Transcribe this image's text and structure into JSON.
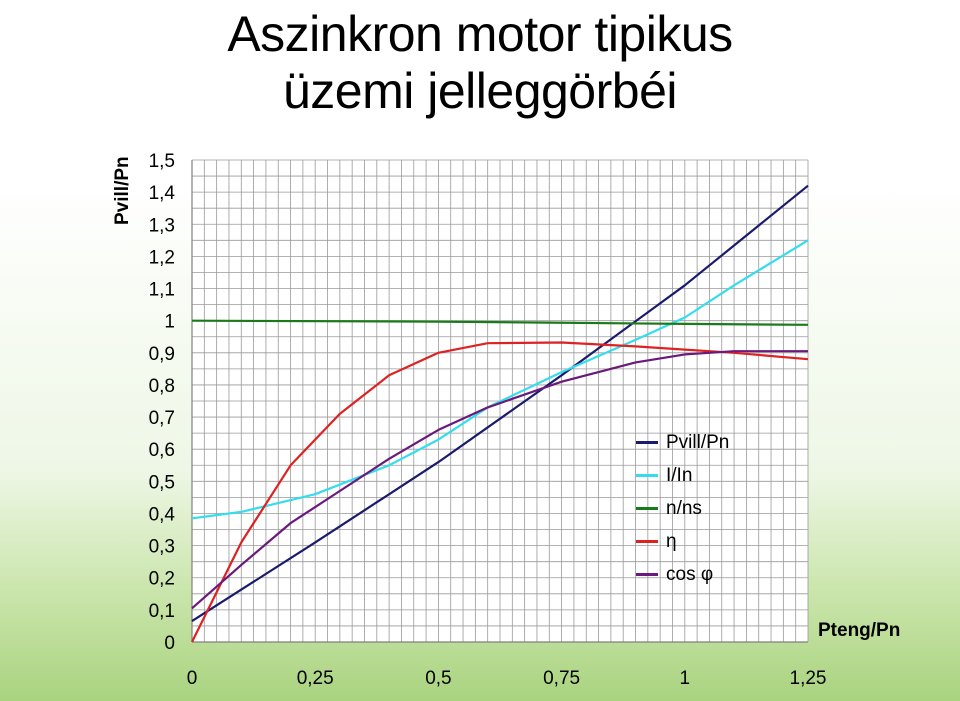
{
  "chart_data": {
    "type": "line",
    "title_line1": "Aszinkron motor tipikus",
    "title_line2": "üzemi jelleggörbéi",
    "xlabel": "Pteng/Pn",
    "ylabel": "Pvill/Pn",
    "xlim": [
      0,
      1.25
    ],
    "ylim": [
      0,
      1.5
    ],
    "x_ticks": [
      "0",
      "0,25",
      "0,5",
      "0,75",
      "1",
      "1,25"
    ],
    "y_ticks": [
      "0",
      "0,1",
      "0,2",
      "0,3",
      "0,4",
      "0,5",
      "0,6",
      "0,7",
      "0,8",
      "0,9",
      "1",
      "1,1",
      "1,2",
      "1,3",
      "1,4",
      "1,5"
    ],
    "grid": true,
    "legend_position": "inside-right",
    "series": [
      {
        "name": "Pvill/Pn",
        "color": "#1a1a6e",
        "points": [
          [
            0,
            0.065
          ],
          [
            0.25,
            0.31
          ],
          [
            0.5,
            0.56
          ],
          [
            0.75,
            0.83
          ],
          [
            1,
            1.11
          ],
          [
            1.25,
            1.42
          ]
        ]
      },
      {
        "name": "I/In",
        "color": "#33ddee",
        "points": [
          [
            0,
            0.385
          ],
          [
            0.1,
            0.405
          ],
          [
            0.25,
            0.46
          ],
          [
            0.4,
            0.55
          ],
          [
            0.5,
            0.63
          ],
          [
            0.6,
            0.73
          ],
          [
            0.75,
            0.84
          ],
          [
            0.9,
            0.94
          ],
          [
            1,
            1.01
          ],
          [
            1.1,
            1.11
          ],
          [
            1.25,
            1.25
          ]
        ]
      },
      {
        "name": "n/ns",
        "color": "#1a7a1a",
        "points": [
          [
            0,
            1.0
          ],
          [
            0.5,
            0.997
          ],
          [
            1,
            0.99
          ],
          [
            1.25,
            0.987
          ]
        ]
      },
      {
        "name": "η",
        "color": "#dd2222",
        "points": [
          [
            0,
            0
          ],
          [
            0.1,
            0.31
          ],
          [
            0.2,
            0.55
          ],
          [
            0.3,
            0.71
          ],
          [
            0.4,
            0.83
          ],
          [
            0.5,
            0.9
          ],
          [
            0.6,
            0.93
          ],
          [
            0.75,
            0.932
          ],
          [
            0.9,
            0.92
          ],
          [
            1,
            0.91
          ],
          [
            1.1,
            0.9
          ],
          [
            1.25,
            0.88
          ]
        ]
      },
      {
        "name": "cos φ",
        "color": "#6a1a7a",
        "points": [
          [
            0,
            0.105
          ],
          [
            0.1,
            0.24
          ],
          [
            0.2,
            0.37
          ],
          [
            0.3,
            0.47
          ],
          [
            0.4,
            0.57
          ],
          [
            0.5,
            0.66
          ],
          [
            0.6,
            0.73
          ],
          [
            0.75,
            0.81
          ],
          [
            0.9,
            0.87
          ],
          [
            1,
            0.895
          ],
          [
            1.1,
            0.905
          ],
          [
            1.25,
            0.905
          ]
        ]
      }
    ]
  }
}
